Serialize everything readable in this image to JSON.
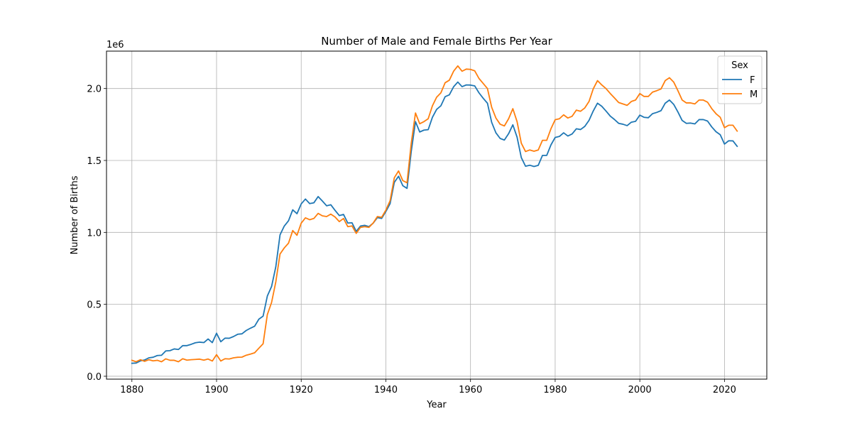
{
  "chart_data": {
    "type": "line",
    "title": "Number of Male and Female Births Per Year",
    "xlabel": "Year",
    "ylabel": "Number of Births",
    "y_offset_label": "1e6",
    "xlim": [
      1874,
      2030
    ],
    "ylim": [
      -0.02,
      2.26
    ],
    "x_ticks": [
      1880,
      1900,
      1920,
      1940,
      1960,
      1980,
      2000,
      2020
    ],
    "y_ticks": [
      0.0,
      0.5,
      1.0,
      1.5,
      2.0
    ],
    "y_tick_labels": [
      "0.0",
      "0.5",
      "1.0",
      "1.5",
      "2.0"
    ],
    "grid": true,
    "legend": {
      "title": "Sex",
      "position": "top-right"
    },
    "series": [
      {
        "name": "F",
        "color": "#1f77b4",
        "points": [
          [
            1880,
            0.09
          ],
          [
            1881,
            0.092
          ],
          [
            1882,
            0.107
          ],
          [
            1883,
            0.113
          ],
          [
            1884,
            0.128
          ],
          [
            1885,
            0.132
          ],
          [
            1886,
            0.144
          ],
          [
            1887,
            0.146
          ],
          [
            1888,
            0.176
          ],
          [
            1889,
            0.178
          ],
          [
            1890,
            0.19
          ],
          [
            1891,
            0.186
          ],
          [
            1892,
            0.213
          ],
          [
            1893,
            0.213
          ],
          [
            1894,
            0.222
          ],
          [
            1895,
            0.233
          ],
          [
            1896,
            0.237
          ],
          [
            1897,
            0.234
          ],
          [
            1898,
            0.259
          ],
          [
            1899,
            0.234
          ],
          [
            1900,
            0.299
          ],
          [
            1901,
            0.24
          ],
          [
            1902,
            0.265
          ],
          [
            1903,
            0.264
          ],
          [
            1904,
            0.276
          ],
          [
            1905,
            0.292
          ],
          [
            1906,
            0.295
          ],
          [
            1907,
            0.318
          ],
          [
            1908,
            0.334
          ],
          [
            1909,
            0.348
          ],
          [
            1910,
            0.397
          ],
          [
            1911,
            0.418
          ],
          [
            1912,
            0.558
          ],
          [
            1913,
            0.624
          ],
          [
            1914,
            0.761
          ],
          [
            1915,
            0.983
          ],
          [
            1916,
            1.044
          ],
          [
            1917,
            1.081
          ],
          [
            1918,
            1.157
          ],
          [
            1919,
            1.13
          ],
          [
            1920,
            1.198
          ],
          [
            1921,
            1.232
          ],
          [
            1922,
            1.2
          ],
          [
            1923,
            1.206
          ],
          [
            1924,
            1.249
          ],
          [
            1925,
            1.218
          ],
          [
            1926,
            1.185
          ],
          [
            1927,
            1.192
          ],
          [
            1928,
            1.153
          ],
          [
            1929,
            1.117
          ],
          [
            1930,
            1.125
          ],
          [
            1931,
            1.065
          ],
          [
            1932,
            1.067
          ],
          [
            1933,
            1.007
          ],
          [
            1934,
            1.044
          ],
          [
            1935,
            1.049
          ],
          [
            1936,
            1.04
          ],
          [
            1937,
            1.064
          ],
          [
            1938,
            1.103
          ],
          [
            1939,
            1.097
          ],
          [
            1940,
            1.145
          ],
          [
            1941,
            1.2
          ],
          [
            1942,
            1.348
          ],
          [
            1943,
            1.39
          ],
          [
            1944,
            1.325
          ],
          [
            1945,
            1.306
          ],
          [
            1946,
            1.563
          ],
          [
            1947,
            1.77
          ],
          [
            1948,
            1.698
          ],
          [
            1949,
            1.711
          ],
          [
            1950,
            1.714
          ],
          [
            1951,
            1.8
          ],
          [
            1952,
            1.855
          ],
          [
            1953,
            1.88
          ],
          [
            1954,
            1.943
          ],
          [
            1955,
            1.956
          ],
          [
            1956,
            2.012
          ],
          [
            1957,
            2.045
          ],
          [
            1958,
            2.013
          ],
          [
            1959,
            2.025
          ],
          [
            1960,
            2.024
          ],
          [
            1961,
            2.018
          ],
          [
            1962,
            1.97
          ],
          [
            1963,
            1.932
          ],
          [
            1964,
            1.898
          ],
          [
            1965,
            1.765
          ],
          [
            1966,
            1.692
          ],
          [
            1967,
            1.653
          ],
          [
            1968,
            1.642
          ],
          [
            1969,
            1.686
          ],
          [
            1970,
            1.748
          ],
          [
            1971,
            1.662
          ],
          [
            1972,
            1.52
          ],
          [
            1973,
            1.46
          ],
          [
            1974,
            1.467
          ],
          [
            1975,
            1.458
          ],
          [
            1976,
            1.466
          ],
          [
            1977,
            1.535
          ],
          [
            1978,
            1.535
          ],
          [
            1979,
            1.608
          ],
          [
            1980,
            1.66
          ],
          [
            1981,
            1.667
          ],
          [
            1982,
            1.692
          ],
          [
            1983,
            1.67
          ],
          [
            1984,
            1.684
          ],
          [
            1985,
            1.72
          ],
          [
            1986,
            1.715
          ],
          [
            1987,
            1.737
          ],
          [
            1988,
            1.779
          ],
          [
            1989,
            1.844
          ],
          [
            1990,
            1.898
          ],
          [
            1991,
            1.877
          ],
          [
            1992,
            1.844
          ],
          [
            1993,
            1.809
          ],
          [
            1994,
            1.785
          ],
          [
            1995,
            1.758
          ],
          [
            1996,
            1.752
          ],
          [
            1997,
            1.742
          ],
          [
            1998,
            1.766
          ],
          [
            1999,
            1.772
          ],
          [
            2000,
            1.815
          ],
          [
            2001,
            1.8
          ],
          [
            2002,
            1.797
          ],
          [
            2003,
            1.825
          ],
          [
            2004,
            1.834
          ],
          [
            2005,
            1.846
          ],
          [
            2006,
            1.898
          ],
          [
            2007,
            1.92
          ],
          [
            2008,
            1.89
          ],
          [
            2009,
            1.837
          ],
          [
            2010,
            1.778
          ],
          [
            2011,
            1.758
          ],
          [
            2012,
            1.76
          ],
          [
            2013,
            1.754
          ],
          [
            2014,
            1.784
          ],
          [
            2015,
            1.784
          ],
          [
            2016,
            1.774
          ],
          [
            2017,
            1.733
          ],
          [
            2018,
            1.7
          ],
          [
            2019,
            1.679
          ],
          [
            2020,
            1.614
          ],
          [
            2021,
            1.637
          ],
          [
            2022,
            1.636
          ],
          [
            2023,
            1.598
          ]
        ]
      },
      {
        "name": "M",
        "color": "#ff7f0e",
        "points": [
          [
            1880,
            0.111
          ],
          [
            1881,
            0.101
          ],
          [
            1882,
            0.115
          ],
          [
            1883,
            0.104
          ],
          [
            1884,
            0.115
          ],
          [
            1885,
            0.107
          ],
          [
            1886,
            0.111
          ],
          [
            1887,
            0.101
          ],
          [
            1888,
            0.121
          ],
          [
            1889,
            0.111
          ],
          [
            1890,
            0.111
          ],
          [
            1891,
            0.101
          ],
          [
            1892,
            0.122
          ],
          [
            1893,
            0.112
          ],
          [
            1894,
            0.115
          ],
          [
            1895,
            0.117
          ],
          [
            1896,
            0.119
          ],
          [
            1897,
            0.112
          ],
          [
            1898,
            0.12
          ],
          [
            1899,
            0.106
          ],
          [
            1900,
            0.15
          ],
          [
            1901,
            0.106
          ],
          [
            1902,
            0.122
          ],
          [
            1903,
            0.12
          ],
          [
            1904,
            0.128
          ],
          [
            1905,
            0.132
          ],
          [
            1906,
            0.133
          ],
          [
            1907,
            0.146
          ],
          [
            1908,
            0.154
          ],
          [
            1909,
            0.163
          ],
          [
            1910,
            0.195
          ],
          [
            1911,
            0.226
          ],
          [
            1912,
            0.429
          ],
          [
            1913,
            0.513
          ],
          [
            1914,
            0.656
          ],
          [
            1915,
            0.85
          ],
          [
            1916,
            0.892
          ],
          [
            1917,
            0.925
          ],
          [
            1918,
            1.013
          ],
          [
            1919,
            0.98
          ],
          [
            1920,
            1.064
          ],
          [
            1921,
            1.101
          ],
          [
            1922,
            1.088
          ],
          [
            1923,
            1.097
          ],
          [
            1924,
            1.132
          ],
          [
            1925,
            1.115
          ],
          [
            1926,
            1.11
          ],
          [
            1927,
            1.127
          ],
          [
            1928,
            1.107
          ],
          [
            1929,
            1.075
          ],
          [
            1930,
            1.097
          ],
          [
            1931,
            1.04
          ],
          [
            1932,
            1.045
          ],
          [
            1933,
            0.993
          ],
          [
            1934,
            1.035
          ],
          [
            1935,
            1.04
          ],
          [
            1936,
            1.035
          ],
          [
            1937,
            1.065
          ],
          [
            1938,
            1.11
          ],
          [
            1939,
            1.105
          ],
          [
            1940,
            1.155
          ],
          [
            1941,
            1.22
          ],
          [
            1942,
            1.38
          ],
          [
            1943,
            1.427
          ],
          [
            1944,
            1.36
          ],
          [
            1945,
            1.345
          ],
          [
            1946,
            1.62
          ],
          [
            1947,
            1.83
          ],
          [
            1948,
            1.755
          ],
          [
            1949,
            1.77
          ],
          [
            1950,
            1.79
          ],
          [
            1951,
            1.88
          ],
          [
            1952,
            1.94
          ],
          [
            1953,
            1.97
          ],
          [
            1954,
            2.04
          ],
          [
            1955,
            2.058
          ],
          [
            1956,
            2.12
          ],
          [
            1957,
            2.157
          ],
          [
            1958,
            2.12
          ],
          [
            1959,
            2.135
          ],
          [
            1960,
            2.133
          ],
          [
            1961,
            2.123
          ],
          [
            1962,
            2.07
          ],
          [
            1963,
            2.035
          ],
          [
            1964,
            2.0
          ],
          [
            1965,
            1.87
          ],
          [
            1966,
            1.795
          ],
          [
            1967,
            1.752
          ],
          [
            1968,
            1.74
          ],
          [
            1969,
            1.79
          ],
          [
            1970,
            1.86
          ],
          [
            1971,
            1.77
          ],
          [
            1972,
            1.62
          ],
          [
            1973,
            1.562
          ],
          [
            1974,
            1.573
          ],
          [
            1975,
            1.564
          ],
          [
            1976,
            1.573
          ],
          [
            1977,
            1.64
          ],
          [
            1978,
            1.64
          ],
          [
            1979,
            1.72
          ],
          [
            1980,
            1.783
          ],
          [
            1981,
            1.79
          ],
          [
            1982,
            1.817
          ],
          [
            1983,
            1.795
          ],
          [
            1984,
            1.807
          ],
          [
            1985,
            1.85
          ],
          [
            1986,
            1.842
          ],
          [
            1987,
            1.865
          ],
          [
            1988,
            1.91
          ],
          [
            1989,
            1.998
          ],
          [
            1990,
            2.055
          ],
          [
            1991,
            2.025
          ],
          [
            1992,
            2.0
          ],
          [
            1993,
            1.966
          ],
          [
            1994,
            1.935
          ],
          [
            1995,
            1.903
          ],
          [
            1996,
            1.893
          ],
          [
            1997,
            1.883
          ],
          [
            1998,
            1.91
          ],
          [
            1999,
            1.92
          ],
          [
            2000,
            1.965
          ],
          [
            2001,
            1.945
          ],
          [
            2002,
            1.945
          ],
          [
            2003,
            1.975
          ],
          [
            2004,
            1.985
          ],
          [
            2005,
            1.997
          ],
          [
            2006,
            2.055
          ],
          [
            2007,
            2.075
          ],
          [
            2008,
            2.045
          ],
          [
            2009,
            1.985
          ],
          [
            2010,
            1.92
          ],
          [
            2011,
            1.9
          ],
          [
            2012,
            1.9
          ],
          [
            2013,
            1.893
          ],
          [
            2014,
            1.92
          ],
          [
            2015,
            1.92
          ],
          [
            2016,
            1.905
          ],
          [
            2017,
            1.86
          ],
          [
            2018,
            1.825
          ],
          [
            2019,
            1.8
          ],
          [
            2020,
            1.728
          ],
          [
            2021,
            1.745
          ],
          [
            2022,
            1.745
          ],
          [
            2023,
            1.704
          ]
        ]
      }
    ]
  }
}
